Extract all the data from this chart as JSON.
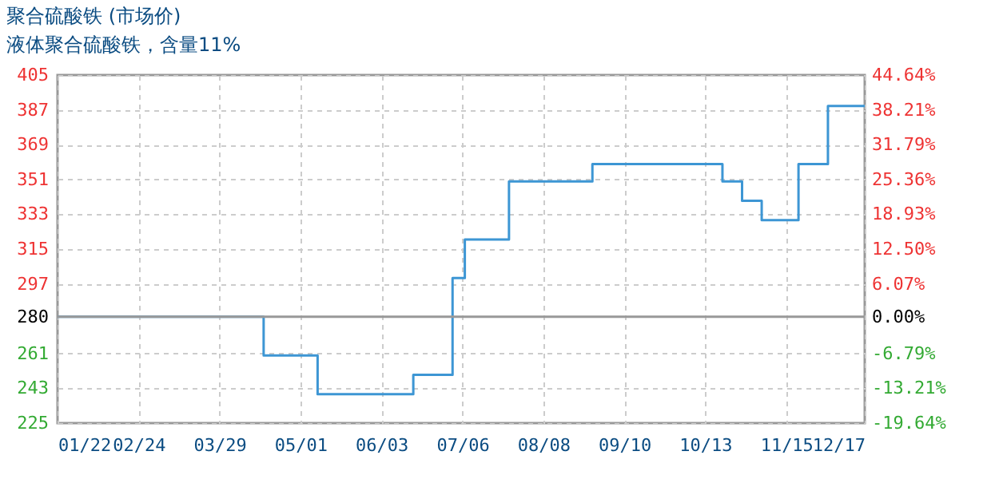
{
  "chart_data": {
    "type": "step",
    "title": "聚合硫酸铁 (市场价)",
    "subtitle": "液体聚合硫酸铁，含量11%",
    "x": [
      "--01-22",
      "--04-16",
      "--05-08",
      "--06-16",
      "--07-02",
      "--07-07",
      "--07-25",
      "--08-28",
      "--10-20",
      "--10-28",
      "--11-05",
      "--11-20",
      "--12-02",
      "--12-17"
    ],
    "series": [
      {
        "color": "#3d96d4",
        "values": [
          280,
          260,
          240,
          250,
          300,
          320,
          350,
          359,
          350,
          340,
          330,
          359,
          389,
          389
        ]
      }
    ],
    "xlim": [
      "--01-22",
      "--12-17"
    ],
    "xticks": [
      {
        "value": "--01-22",
        "label": "01/22"
      },
      {
        "value": "--02-24",
        "label": "02/24"
      },
      {
        "value": "--03-29",
        "label": "03/29"
      },
      {
        "value": "--05-01",
        "label": "05/01"
      },
      {
        "value": "--06-03",
        "label": "06/03"
      },
      {
        "value": "--07-06",
        "label": "07/06"
      },
      {
        "value": "--08-08",
        "label": "08/08"
      },
      {
        "value": "--09-10",
        "label": "09/10"
      },
      {
        "value": "--10-13",
        "label": "10/13"
      },
      {
        "value": "--11-15",
        "label": "11/15"
      },
      {
        "value": "--12-17",
        "label": "12/17"
      }
    ],
    "ylim": [
      225,
      405
    ],
    "yticks": [
      225,
      243,
      261,
      280,
      297,
      315,
      333,
      351,
      369,
      387,
      405
    ],
    "y2lim": [
      -19.64,
      44.64
    ],
    "y2ticks": [
      {
        "value": -19.64,
        "label": "-19.64%"
      },
      {
        "value": -13.21,
        "label": "-13.21%"
      },
      {
        "value": -6.79,
        "label": "-6.79%"
      },
      {
        "value": 0,
        "label": "0.00%"
      },
      {
        "value": 6.07,
        "label": "6.07%"
      },
      {
        "value": 12.5,
        "label": "12.50%"
      },
      {
        "value": 18.93,
        "label": "18.93%"
      },
      {
        "value": 25.36,
        "label": "25.36%"
      },
      {
        "value": 31.79,
        "label": "31.79%"
      },
      {
        "value": 38.21,
        "label": "38.21%"
      },
      {
        "value": 44.64,
        "label": "44.64%"
      }
    ],
    "ref_lines": [
      {
        "axis": "y",
        "value": 280,
        "color": "#999999"
      }
    ],
    "grid": true
  }
}
